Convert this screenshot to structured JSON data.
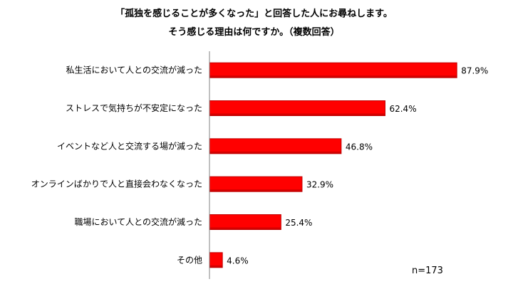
{
  "chart_data": {
    "type": "bar",
    "orientation": "horizontal",
    "title": "「孤独を感じることが多くなった」と回答した人にお尋ねします。",
    "subtitle": "そう感じる理由は何ですか。（複数回答）",
    "categories": [
      "私生活において人との交流が減った",
      "ストレスで気持ちが不安定になった",
      "イベントなど人と交流する場が減った",
      "オンラインばかりで人と直接会わなくなった",
      "職場において人との交流が減った",
      "その他"
    ],
    "values": [
      87.9,
      62.4,
      46.8,
      32.9,
      25.4,
      4.6
    ],
    "value_labels": [
      "87.9%",
      "62.4%",
      "46.8%",
      "32.9%",
      "25.4%",
      "4.6%"
    ],
    "xlim": [
      0,
      100
    ],
    "grid": false,
    "bar_color": "#ff0000",
    "bar_edge_color": "#c00000",
    "note": "n=173"
  }
}
